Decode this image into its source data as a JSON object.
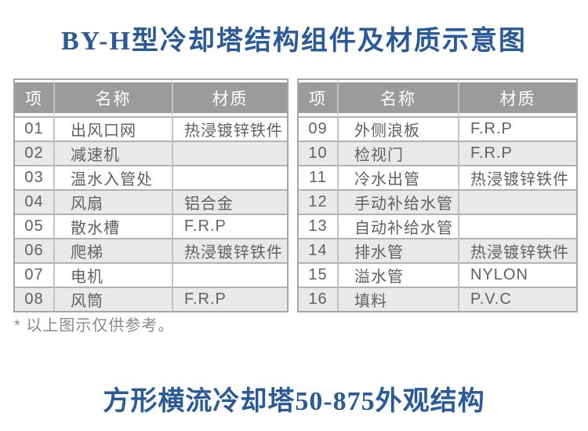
{
  "page": {
    "title": "BY-H型冷却塔结构组件及材质示意图",
    "footnote": "* 以上图示仅供参考。",
    "subtitle": "方形横流冷却塔50-875外观结构"
  },
  "columns": {
    "item": "项",
    "name": "名称",
    "material": "材质"
  },
  "tables": [
    {
      "rows": [
        {
          "no": "01",
          "name": "出风口网",
          "material": "热浸镀锌铁件"
        },
        {
          "no": "02",
          "name": "减速机",
          "material": ""
        },
        {
          "no": "03",
          "name": "温水入管处",
          "material": ""
        },
        {
          "no": "04",
          "name": "风扇",
          "material": "铝合金"
        },
        {
          "no": "05",
          "name": "散水槽",
          "material": "F.R.P"
        },
        {
          "no": "06",
          "name": "爬梯",
          "material": "热浸镀锌铁件"
        },
        {
          "no": "07",
          "name": "电机",
          "material": ""
        },
        {
          "no": "08",
          "name": "风筒",
          "material": "F.R.P"
        }
      ]
    },
    {
      "rows": [
        {
          "no": "09",
          "name": "外侧浪板",
          "material": "F.R.P"
        },
        {
          "no": "10",
          "name": "检视门",
          "material": "F.R.P"
        },
        {
          "no": "11",
          "name": "冷水出管",
          "material": "热浸镀锌铁件"
        },
        {
          "no": "12",
          "name": "手动补给水管",
          "material": ""
        },
        {
          "no": "13",
          "name": "自动补给水管",
          "material": ""
        },
        {
          "no": "14",
          "name": "排水管",
          "material": "热浸镀锌铁件"
        },
        {
          "no": "15",
          "name": "溢水管",
          "material": "NYLON"
        },
        {
          "no": "16",
          "name": "填料",
          "material": "P.V.C"
        }
      ]
    }
  ],
  "colors": {
    "accent-blue": "#2a5a97",
    "header-bg": "#9b9b9b",
    "header-text": "#ffffff",
    "body-text": "#616161",
    "row-alt-bg": "#e9e9e9",
    "border-outer": "#a6a6a6",
    "footnote-text": "#8a8a8a"
  }
}
